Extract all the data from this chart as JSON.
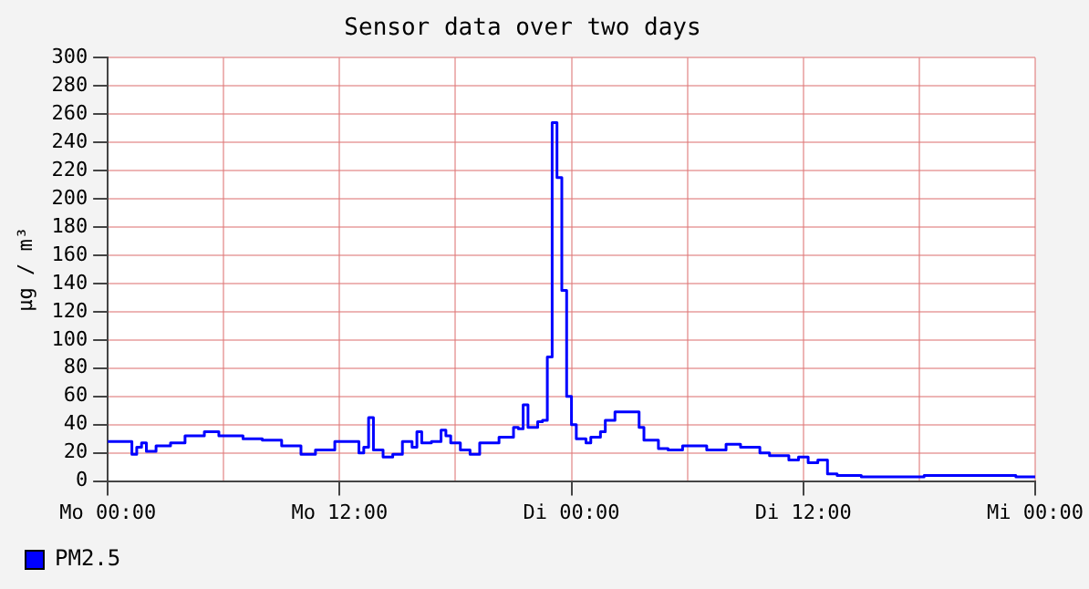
{
  "chart_data": {
    "type": "step",
    "title": "Sensor data over two days",
    "ylabel": "µg / m³",
    "categories": [
      "Mo 00:00",
      null,
      null,
      null,
      null,
      null,
      null,
      null,
      null,
      null,
      null,
      null,
      null,
      null,
      null,
      null,
      null,
      null,
      null,
      null,
      null,
      null,
      null,
      null,
      null,
      null,
      null,
      null,
      null,
      null,
      null,
      null,
      null,
      null,
      null,
      null,
      null,
      null,
      null,
      null,
      null,
      null,
      null,
      null,
      null,
      null,
      null,
      null,
      "Mo 12:00",
      null,
      null,
      null,
      null,
      null,
      null,
      null,
      null,
      null,
      null,
      null,
      null,
      null,
      null,
      null,
      null,
      null,
      null,
      null,
      null,
      null,
      null,
      null,
      null,
      null,
      null,
      null,
      null,
      null,
      null,
      null,
      null,
      null,
      null,
      null,
      null,
      null,
      null,
      null,
      null,
      null,
      null,
      null,
      null,
      null,
      null,
      null,
      "Di 00:00",
      null,
      null,
      null,
      null,
      null,
      null,
      null,
      null,
      null,
      null,
      null,
      null,
      null,
      null,
      null,
      null,
      null,
      null,
      null,
      null,
      null,
      null,
      null,
      null,
      null,
      null,
      null,
      null,
      null,
      null,
      null,
      null,
      null,
      null,
      null,
      null,
      null,
      null,
      null,
      null,
      null,
      null,
      null,
      null,
      null,
      null,
      null,
      "Di 12:00",
      null,
      null,
      null,
      null,
      null,
      null,
      null,
      null,
      null,
      null,
      null,
      null,
      null,
      null,
      null,
      null,
      null,
      null,
      null,
      null,
      null,
      null,
      null,
      null,
      null,
      null,
      null,
      null,
      null,
      null,
      null,
      null,
      null,
      null,
      null,
      null,
      null,
      null,
      null,
      null,
      null,
      null,
      null,
      null,
      null,
      null,
      null,
      "Mi 00:00"
    ],
    "ylim": [
      0,
      300
    ],
    "yticks": [
      0,
      20,
      40,
      60,
      80,
      100,
      120,
      140,
      160,
      180,
      200,
      220,
      240,
      260,
      280,
      300
    ],
    "grid": true,
    "legend": "bottom left",
    "marker": "none",
    "line_style": "solid",
    "series": [
      {
        "name": "PM2.5",
        "color": "#0000ff",
        "values": [
          28,
          28,
          28,
          28,
          28,
          19,
          24,
          27,
          21,
          21,
          25,
          25,
          25,
          27,
          27,
          27,
          32,
          32,
          32,
          32,
          35,
          35,
          35,
          32,
          32,
          32,
          32,
          32,
          30,
          30,
          30,
          30,
          29,
          29,
          29,
          29,
          25,
          25,
          25,
          25,
          19,
          19,
          19,
          22,
          22,
          22,
          22,
          28,
          28,
          28,
          28,
          28,
          20,
          24,
          45,
          22,
          22,
          17,
          17,
          19,
          19,
          28,
          28,
          24,
          35,
          27,
          27,
          28,
          28,
          36,
          32,
          27,
          27,
          22,
          22,
          19,
          19,
          27,
          27,
          27,
          27,
          31,
          31,
          31,
          38,
          37,
          54,
          38,
          38,
          42,
          43,
          88,
          254,
          215,
          135,
          60,
          40,
          30,
          30,
          27,
          31,
          31,
          35,
          43,
          43,
          49,
          49,
          49,
          49,
          49,
          38,
          29,
          29,
          29,
          23,
          23,
          22,
          22,
          22,
          25,
          25,
          25,
          25,
          25,
          22,
          22,
          22,
          22,
          26,
          26,
          26,
          24,
          24,
          24,
          24,
          20,
          20,
          18,
          18,
          18,
          18,
          15,
          15,
          17,
          17,
          13,
          13,
          15,
          15,
          5,
          5,
          4,
          4,
          4,
          4,
          4,
          3,
          3,
          3,
          3,
          3,
          3,
          3,
          3,
          3,
          3,
          3,
          3,
          3,
          4,
          4,
          4,
          4,
          4,
          4,
          4,
          4,
          4,
          4,
          4,
          4,
          4,
          4,
          4,
          4,
          4,
          4,
          4,
          3,
          3,
          3,
          3,
          3
        ]
      }
    ]
  }
}
